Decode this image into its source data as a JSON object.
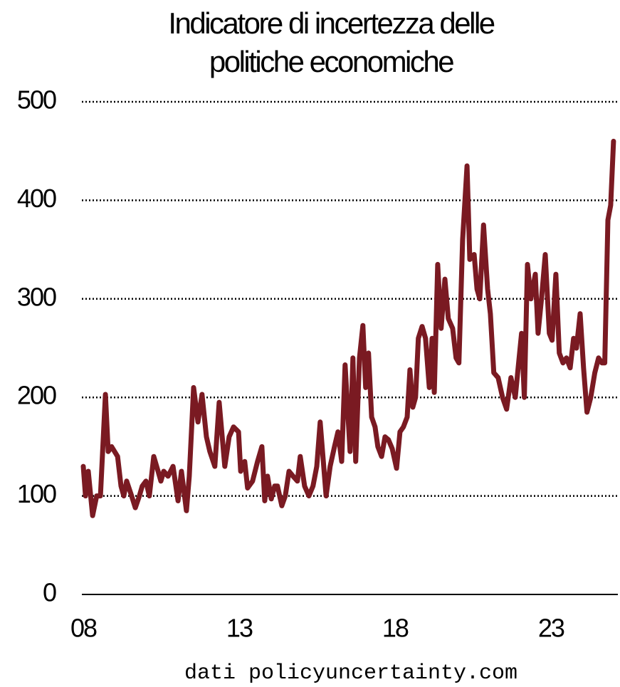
{
  "chart_data": {
    "type": "line",
    "title": [
      "Indicatore di incertezza delle",
      "politiche economiche"
    ],
    "source": "dati policyuncertainty.com",
    "x": [
      8.0,
      8.07,
      8.16,
      8.3,
      8.43,
      8.55,
      8.71,
      8.8,
      8.91,
      9.1,
      9.21,
      9.3,
      9.39,
      9.55,
      9.67,
      9.8,
      9.89,
      10.01,
      10.12,
      10.26,
      10.4,
      10.49,
      10.58,
      10.72,
      10.88,
      11.04,
      11.15,
      11.31,
      11.4,
      11.54,
      11.68,
      11.81,
      11.95,
      12.06,
      12.22,
      12.36,
      12.54,
      12.68,
      12.82,
      12.98,
      13.05,
      13.18,
      13.27,
      13.43,
      13.59,
      13.73,
      13.82,
      13.91,
      14.03,
      14.14,
      14.23,
      14.37,
      14.48,
      14.6,
      14.73,
      14.87,
      14.96,
      15.1,
      15.24,
      15.37,
      15.49,
      15.6,
      15.79,
      15.92,
      16.06,
      16.17,
      16.29,
      16.4,
      16.56,
      16.65,
      16.74,
      16.86,
      16.97,
      17.06,
      17.15,
      17.25,
      17.36,
      17.45,
      17.57,
      17.68,
      17.79,
      17.91,
      18.05,
      18.16,
      18.27,
      18.39,
      18.48,
      18.57,
      18.66,
      18.75,
      18.87,
      18.98,
      19.1,
      19.19,
      19.26,
      19.37,
      19.48,
      19.6,
      19.71,
      19.85,
      19.96,
      20.05,
      20.17,
      20.31,
      20.4,
      20.54,
      20.63,
      20.72,
      20.84,
      20.97,
      21.06,
      21.17,
      21.31,
      21.45,
      21.58,
      21.72,
      21.86,
      21.95,
      22.06,
      22.15,
      22.25,
      22.36,
      22.5,
      22.59,
      22.7,
      22.82,
      22.95,
      23.04,
      23.16,
      23.27,
      23.39,
      23.5,
      23.62,
      23.73,
      23.82,
      23.94,
      24.05,
      24.16,
      24.28,
      24.41,
      24.53,
      24.64,
      24.73,
      24.83,
      24.92,
      25.01
    ],
    "series": [
      {
        "name": "Indicatore",
        "color": "#7a1a22",
        "values": [
          130,
          100,
          125,
          80,
          100,
          100,
          203,
          145,
          150,
          140,
          110,
          100,
          115,
          100,
          88,
          100,
          110,
          115,
          100,
          140,
          125,
          115,
          125,
          120,
          130,
          95,
          125,
          85,
          120,
          210,
          175,
          203,
          160,
          145,
          130,
          195,
          130,
          160,
          170,
          165,
          125,
          135,
          108,
          115,
          135,
          150,
          95,
          120,
          97,
          110,
          110,
          90,
          100,
          125,
          120,
          115,
          140,
          110,
          100,
          110,
          130,
          175,
          100,
          130,
          150,
          165,
          135,
          233,
          145,
          240,
          135,
          240,
          273,
          210,
          245,
          180,
          170,
          150,
          140,
          160,
          157,
          148,
          128,
          165,
          170,
          180,
          228,
          190,
          200,
          260,
          272,
          260,
          210,
          260,
          205,
          335,
          270,
          320,
          280,
          270,
          240,
          235,
          360,
          435,
          340,
          345,
          310,
          300,
          375,
          310,
          285,
          225,
          220,
          200,
          188,
          220,
          200,
          230,
          265,
          200,
          335,
          300,
          325,
          265,
          300,
          345,
          265,
          258,
          325,
          245,
          235,
          240,
          230,
          260,
          250,
          285,
          230,
          185,
          200,
          225,
          240,
          235,
          235,
          380,
          395,
          460
        ]
      }
    ],
    "xlim": [
      8,
      25.15
    ],
    "xticks": [
      {
        "value": 8,
        "label": "08"
      },
      13,
      18,
      23
    ],
    "ylim": [
      0,
      500
    ],
    "yticks": [
      0,
      100,
      200,
      300,
      400,
      500
    ],
    "grid": true
  }
}
